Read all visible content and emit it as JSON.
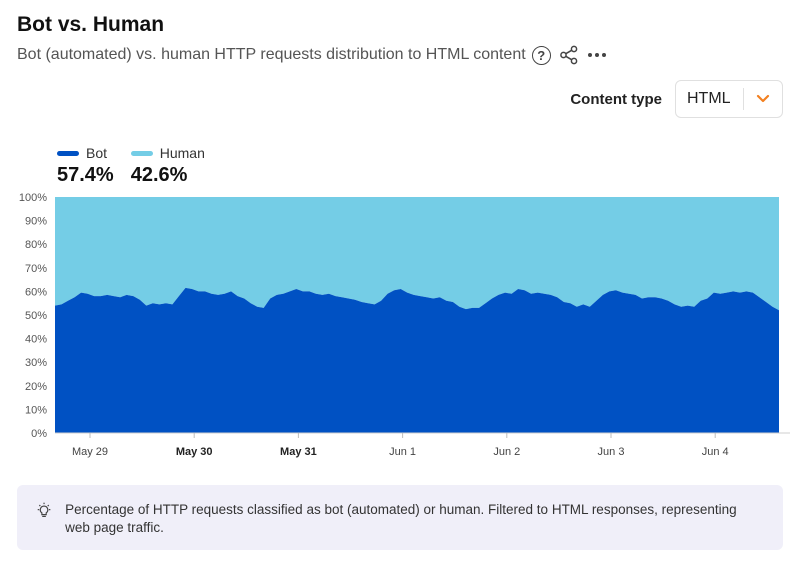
{
  "header": {
    "title": "Bot vs. Human",
    "subtitle": "Bot (automated) vs. human HTTP requests distribution to HTML content"
  },
  "filter": {
    "label": "Content type",
    "value": "HTML"
  },
  "legend": [
    {
      "name": "Bot",
      "value": "57.4%",
      "color": "#0051c3"
    },
    {
      "name": "Human",
      "value": "42.6%",
      "color": "#74cde6"
    }
  ],
  "colors": {
    "accent": "#f38020",
    "bot": "#0051c3",
    "human": "#74cde6"
  },
  "chart_data": {
    "type": "area",
    "stacked": true,
    "normalized": true,
    "x_ticks": [
      {
        "label": "May 29",
        "bold": false
      },
      {
        "label": "May 30",
        "bold": true
      },
      {
        "label": "May 31",
        "bold": true
      },
      {
        "label": "Jun 1",
        "bold": false
      },
      {
        "label": "Jun 2",
        "bold": false
      },
      {
        "label": "Jun 3",
        "bold": false
      },
      {
        "label": "Jun 4",
        "bold": false
      }
    ],
    "y_ticks": [
      "0%",
      "10%",
      "20%",
      "30%",
      "40%",
      "50%",
      "60%",
      "70%",
      "80%",
      "90%",
      "100%"
    ],
    "ylim": [
      0,
      100
    ],
    "series": [
      {
        "name": "Bot",
        "values": [
          54,
          54.5,
          56,
          57.5,
          59.5,
          59,
          58,
          58,
          58.5,
          58,
          57.5,
          58.5,
          58,
          56.5,
          54,
          55,
          54.5,
          55,
          54.5,
          58,
          61.5,
          61,
          60,
          60,
          59,
          58.5,
          59,
          60,
          58,
          57,
          55,
          53.5,
          53,
          57,
          58.5,
          59,
          60,
          61,
          60,
          60,
          59,
          58.5,
          59,
          58,
          57.5,
          57,
          56.5,
          55.5,
          55,
          54.5,
          56,
          59,
          60.5,
          61,
          59.5,
          58.5,
          58,
          57.5,
          57,
          57.5,
          56,
          55.5,
          53.5,
          52.5,
          53,
          53,
          55,
          57,
          58.5,
          59.5,
          59,
          61,
          60.5,
          59,
          59.5,
          59,
          58.5,
          57.5,
          55.5,
          55,
          53.5,
          54.5,
          53.5,
          56,
          58.5,
          60,
          60.5,
          59.5,
          59,
          58.5,
          57,
          57.5,
          57.5,
          57,
          56,
          54.5,
          53.5,
          54,
          53.5,
          56,
          57,
          59.5,
          59,
          59.5,
          60,
          59.5,
          60,
          59.5,
          57.5,
          55.5,
          53.5,
          52
        ]
      },
      {
        "name": "Human",
        "values": [
          46,
          45.5,
          44,
          42.5,
          40.5,
          41,
          42,
          42,
          41.5,
          42,
          42.5,
          41.5,
          42,
          43.5,
          46,
          45,
          45.5,
          45,
          45.5,
          42,
          38.5,
          39,
          40,
          40,
          41,
          41.5,
          41,
          40,
          42,
          43,
          45,
          46.5,
          47,
          43,
          41.5,
          41,
          40,
          39,
          40,
          40,
          41,
          41.5,
          41,
          42,
          42.5,
          43,
          43.5,
          44.5,
          45,
          45.5,
          44,
          41,
          39.5,
          39,
          40.5,
          41.5,
          42,
          42.5,
          43,
          42.5,
          44,
          44.5,
          46.5,
          47.5,
          47,
          47,
          45,
          43,
          41.5,
          40.5,
          41,
          39,
          39.5,
          41,
          40.5,
          41,
          41.5,
          42.5,
          44.5,
          45,
          46.5,
          45.5,
          46.5,
          44,
          41.5,
          40,
          39.5,
          40.5,
          41,
          41.5,
          43,
          42.5,
          42.5,
          43,
          44,
          45.5,
          46.5,
          46,
          46.5,
          44,
          43,
          40.5,
          41,
          40.5,
          40,
          40.5,
          40,
          40.5,
          42.5,
          44.5,
          46.5,
          48
        ]
      }
    ]
  },
  "info": {
    "text": "Percentage of HTTP requests classified as bot (automated) or human. Filtered to HTML responses, representing web page traffic."
  }
}
